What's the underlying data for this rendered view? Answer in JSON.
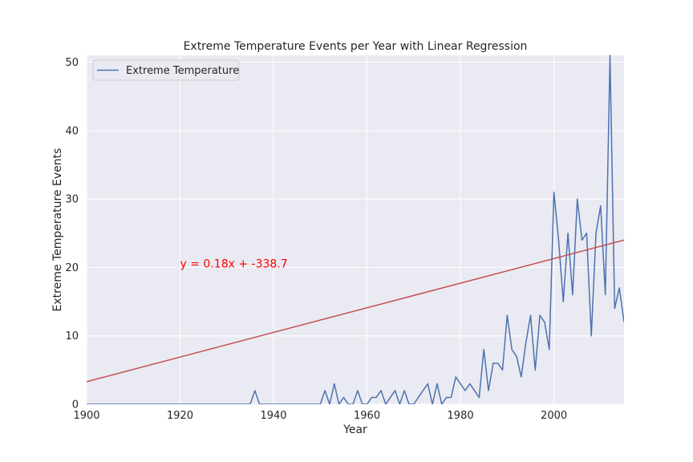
{
  "chart_data": {
    "type": "line",
    "title": "Extreme Temperature Events per Year with Linear Regression",
    "xlabel": "Year",
    "ylabel": "Extreme Temperature Events",
    "xlim": [
      1900,
      2015
    ],
    "ylim": [
      0,
      51
    ],
    "xticks": [
      1900,
      1920,
      1940,
      1960,
      1980,
      2000
    ],
    "yticks": [
      0,
      10,
      20,
      30,
      40,
      50
    ],
    "grid": true,
    "legend_position": "top-left",
    "series": [
      {
        "name": "Extreme Temperature",
        "color": "#4c72b0",
        "x": [
          1900,
          1901,
          1902,
          1903,
          1904,
          1905,
          1906,
          1907,
          1908,
          1909,
          1910,
          1911,
          1912,
          1913,
          1914,
          1915,
          1916,
          1917,
          1918,
          1919,
          1920,
          1921,
          1922,
          1923,
          1924,
          1925,
          1926,
          1927,
          1928,
          1929,
          1930,
          1931,
          1932,
          1933,
          1934,
          1935,
          1936,
          1937,
          1938,
          1939,
          1940,
          1941,
          1942,
          1943,
          1944,
          1945,
          1946,
          1947,
          1948,
          1949,
          1950,
          1951,
          1952,
          1953,
          1954,
          1955,
          1956,
          1957,
          1958,
          1959,
          1960,
          1961,
          1962,
          1963,
          1964,
          1965,
          1966,
          1967,
          1968,
          1969,
          1970,
          1971,
          1972,
          1973,
          1974,
          1975,
          1976,
          1977,
          1978,
          1979,
          1980,
          1981,
          1982,
          1983,
          1984,
          1985,
          1986,
          1987,
          1988,
          1989,
          1990,
          1991,
          1992,
          1993,
          1994,
          1995,
          1996,
          1997,
          1998,
          1999,
          2000,
          2001,
          2002,
          2003,
          2004,
          2005,
          2006,
          2007,
          2008,
          2009,
          2010,
          2011,
          2012,
          2013,
          2014,
          2015
        ],
        "y": [
          0,
          0,
          0,
          0,
          0,
          0,
          0,
          0,
          0,
          0,
          0,
          0,
          0,
          0,
          0,
          0,
          0,
          0,
          0,
          0,
          0,
          0,
          0,
          0,
          0,
          0,
          0,
          0,
          0,
          0,
          0,
          0,
          0,
          0,
          0,
          0,
          2,
          0,
          0,
          0,
          0,
          0,
          0,
          0,
          0,
          0,
          0,
          0,
          0,
          0,
          0,
          2,
          0,
          3,
          0,
          1,
          0,
          0,
          2,
          0,
          0,
          1,
          1,
          2,
          0,
          1,
          2,
          0,
          2,
          0,
          0,
          1,
          2,
          3,
          0,
          3,
          0,
          1,
          1,
          4,
          3,
          2,
          3,
          2,
          1,
          8,
          2,
          6,
          6,
          5,
          13,
          8,
          7,
          4,
          9,
          13,
          5,
          13,
          12,
          8,
          31,
          24,
          15,
          25,
          16,
          30,
          24,
          25,
          10,
          25,
          29,
          16,
          51,
          14,
          17,
          12
        ]
      },
      {
        "name": "",
        "kind": "regression",
        "color": "#c44e52",
        "slope": 0.18,
        "intercept": -338.7
      }
    ],
    "annotations": [
      {
        "text": "y = 0.18x + -338.7",
        "x": 1920,
        "y": 20,
        "color": "#ff0000"
      }
    ]
  }
}
